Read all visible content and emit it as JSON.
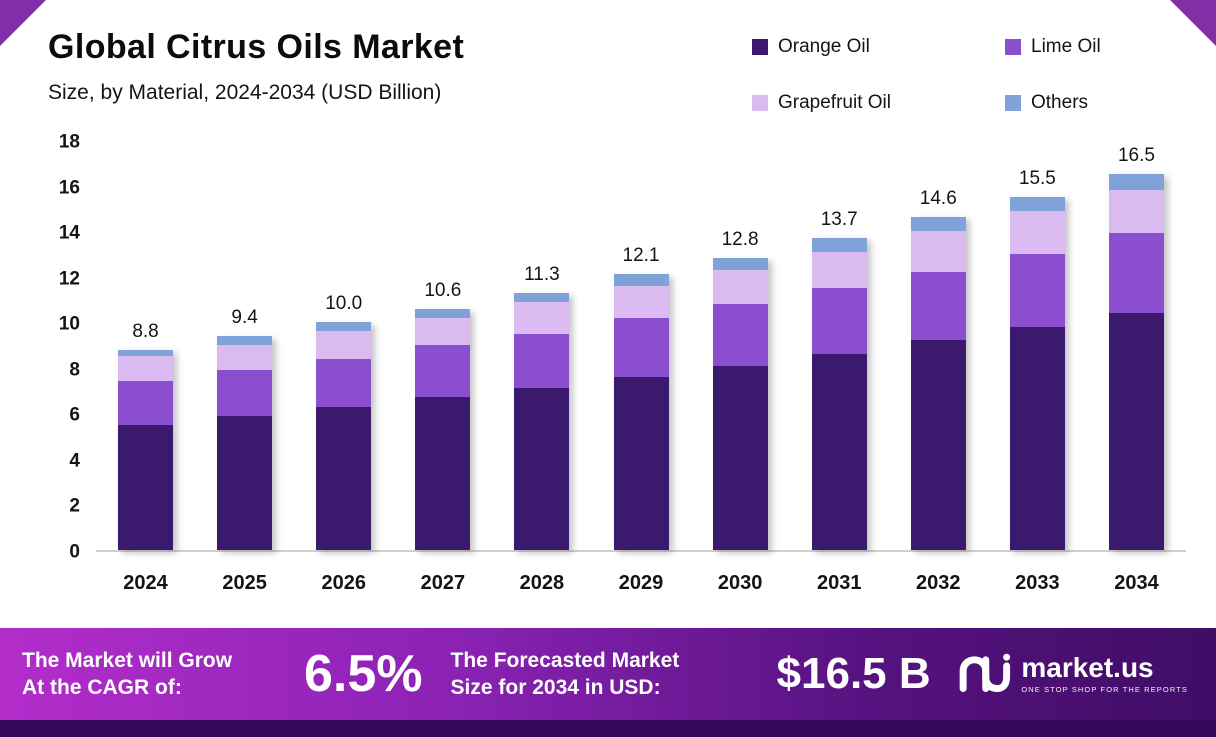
{
  "header": {
    "title": "Global Citrus Oils Market",
    "subtitle": "Size, by Material, 2024-2034 (USD Billion)"
  },
  "legend": [
    {
      "label": "Orange Oil",
      "color": "#3b1a6e"
    },
    {
      "label": "Lime Oil",
      "color": "#8a4ece"
    },
    {
      "label": "Grapefruit Oil",
      "color": "#d9baf1"
    },
    {
      "label": "Others",
      "color": "#7fa3d9"
    }
  ],
  "chart_data": {
    "type": "bar",
    "stacked": true,
    "title": "Global Citrus Oils Market",
    "subtitle": "Size, by Material, 2024-2034 (USD Billion)",
    "xlabel": "",
    "ylabel": "USD Billion",
    "ylim": [
      0,
      18
    ],
    "yticks": [
      0,
      2,
      4,
      6,
      8,
      10,
      12,
      14,
      16,
      18
    ],
    "grid": false,
    "legend_position": "top-right",
    "categories": [
      "2024",
      "2025",
      "2026",
      "2027",
      "2028",
      "2029",
      "2030",
      "2031",
      "2032",
      "2033",
      "2034"
    ],
    "series": [
      {
        "name": "Orange Oil",
        "color": "#3b1a6e",
        "values": [
          5.5,
          5.9,
          6.3,
          6.7,
          7.1,
          7.6,
          8.1,
          8.6,
          9.2,
          9.8,
          10.4
        ]
      },
      {
        "name": "Lime Oil",
        "color": "#8a4ece",
        "values": [
          1.9,
          2.0,
          2.1,
          2.3,
          2.4,
          2.6,
          2.7,
          2.9,
          3.0,
          3.2,
          3.5
        ]
      },
      {
        "name": "Grapefruit Oil",
        "color": "#d9baf1",
        "values": [
          1.1,
          1.1,
          1.2,
          1.2,
          1.4,
          1.4,
          1.5,
          1.6,
          1.8,
          1.9,
          1.9
        ]
      },
      {
        "name": "Others",
        "color": "#7fa3d9",
        "values": [
          0.3,
          0.4,
          0.4,
          0.4,
          0.4,
          0.5,
          0.5,
          0.6,
          0.6,
          0.6,
          0.7
        ]
      }
    ],
    "totals": [
      8.8,
      9.4,
      10.0,
      10.6,
      11.3,
      12.1,
      12.8,
      13.7,
      14.6,
      15.5,
      16.5
    ]
  },
  "footer": {
    "cagr": {
      "label_line1": "The Market will Grow",
      "label_line2": "At the CAGR of:",
      "value": "6.5%"
    },
    "forecast": {
      "label_line1": "The Forecasted Market",
      "label_line2": "Size for 2034 in USD:",
      "value": "$16.5 B"
    },
    "brand": "market.us",
    "brand_tagline": "ONE STOP SHOP FOR THE REPORTS"
  },
  "accent_colors": {
    "corner_accent": "#8230a8",
    "banner_gradient_start": "#b32dcb",
    "banner_gradient_end": "#400d65",
    "bottom_strip": "#35095a"
  }
}
